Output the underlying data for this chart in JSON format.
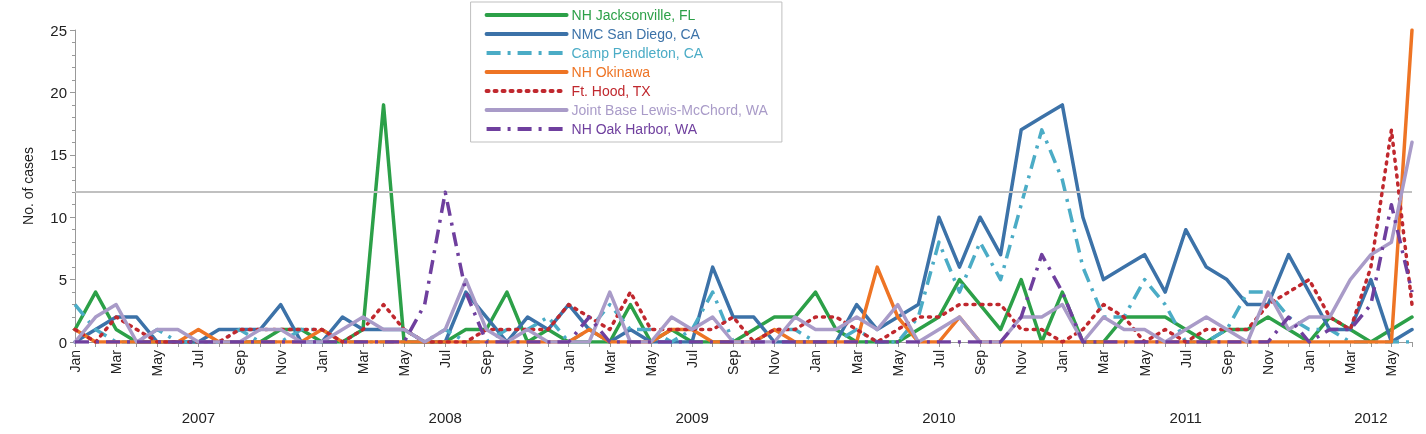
{
  "chart_data": {
    "type": "line",
    "ylabel": "No. of cases",
    "categories": [
      "Jan",
      null,
      "Mar",
      null,
      "May",
      null,
      "Jul",
      null,
      "Sep",
      null,
      "Nov",
      null,
      "Jan",
      null,
      "Mar",
      null,
      "May",
      null,
      "Jul",
      null,
      "Sep",
      null,
      "Nov",
      null,
      "Jan",
      null,
      "Mar",
      null,
      "May",
      null,
      "Jul",
      null,
      "Sep",
      null,
      "Nov",
      null,
      "Jan",
      null,
      "Mar",
      null,
      "May",
      null,
      "Jul",
      null,
      "Sep",
      null,
      "Nov",
      null,
      "Jan",
      null,
      "Mar",
      null,
      "May",
      null,
      "Jul",
      null,
      "Sep",
      null,
      "Nov",
      null,
      "Jan",
      null,
      "Mar",
      null,
      "May",
      null
    ],
    "annotations": [
      "2007",
      "2008",
      "2009",
      "2010",
      "2011",
      "2012"
    ],
    "ylim": [
      0,
      25
    ],
    "yticks": [
      0,
      5,
      10,
      15,
      20,
      25
    ],
    "grid": false,
    "legend": "top",
    "marker": "none",
    "ref_lines": [
      {
        "axis": "y",
        "value": 12,
        "color": "#c0c0c0"
      }
    ],
    "series": [
      {
        "name": "NH Jacksonville, FL",
        "color": "#2ca048",
        "line_style": "solid",
        "values": [
          1,
          4,
          1,
          0,
          0,
          0,
          0,
          0,
          0,
          0,
          1,
          1,
          0,
          0,
          1,
          19,
          0,
          0,
          0,
          1,
          1,
          4,
          0,
          1,
          0,
          0,
          0,
          3,
          0,
          1,
          0,
          0,
          0,
          1,
          2,
          2,
          4,
          1,
          0,
          0,
          0,
          1,
          2,
          5,
          3,
          1,
          5,
          0,
          4,
          0,
          0,
          2,
          2,
          2,
          1,
          0,
          1,
          1,
          2,
          1,
          0,
          2,
          1,
          0,
          1,
          2
        ]
      },
      {
        "name": "NMC San Diego, CA",
        "color": "#3c72a8",
        "line_style": "solid",
        "values": [
          0,
          1,
          2,
          2,
          0,
          0,
          0,
          1,
          1,
          1,
          3,
          0,
          0,
          2,
          1,
          1,
          1,
          0,
          0,
          4,
          2,
          0,
          2,
          1,
          3,
          1,
          0,
          1,
          0,
          0,
          0,
          6,
          2,
          2,
          0,
          0,
          0,
          0,
          3,
          1,
          2,
          3,
          10,
          6,
          10,
          7,
          17,
          18,
          19,
          10,
          5,
          6,
          7,
          4,
          9,
          6,
          5,
          3,
          3,
          7,
          4,
          1,
          1,
          5,
          0,
          1
        ]
      },
      {
        "name": "Camp Pendleton, CA",
        "color": "#4bacc6",
        "line_style": "dashed",
        "values": [
          3,
          1,
          0,
          0,
          1,
          0,
          0,
          0,
          1,
          0,
          0,
          1,
          1,
          0,
          0,
          0,
          0,
          0,
          1,
          0,
          0,
          1,
          1,
          2,
          0,
          1,
          3,
          1,
          1,
          0,
          1,
          4,
          0,
          0,
          1,
          1,
          0,
          0,
          1,
          0,
          0,
          2,
          8,
          4,
          8,
          5,
          11,
          17,
          13,
          6,
          2,
          2,
          5,
          3,
          0,
          0,
          1,
          4,
          4,
          2,
          1,
          1,
          0,
          0,
          0,
          0
        ]
      },
      {
        "name": "NH Okinawa",
        "color": "#ee7424",
        "line_style": "solid",
        "values": [
          1,
          0,
          0,
          0,
          0,
          0,
          1,
          0,
          0,
          0,
          0,
          0,
          1,
          0,
          0,
          0,
          0,
          0,
          0,
          0,
          0,
          0,
          0,
          0,
          0,
          1,
          0,
          0,
          0,
          1,
          1,
          0,
          0,
          0,
          1,
          0,
          0,
          0,
          0,
          6,
          2,
          0,
          0,
          2,
          0,
          0,
          0,
          0,
          0,
          0,
          0,
          0,
          0,
          0,
          0,
          0,
          0,
          0,
          0,
          0,
          0,
          0,
          0,
          0,
          0,
          25
        ]
      },
      {
        "name": "Ft. Hood, TX",
        "color": "#c0282e",
        "line_style": "dotted",
        "values": [
          1,
          0,
          2,
          1,
          0,
          0,
          0,
          0,
          1,
          1,
          1,
          1,
          1,
          0,
          1,
          3,
          1,
          0,
          0,
          0,
          1,
          1,
          1,
          1,
          3,
          2,
          1,
          4,
          1,
          1,
          1,
          1,
          2,
          0,
          1,
          1,
          2,
          2,
          1,
          0,
          1,
          2,
          2,
          3,
          3,
          3,
          1,
          1,
          0,
          1,
          3,
          2,
          0,
          1,
          0,
          1,
          1,
          1,
          3,
          4,
          5,
          2,
          1,
          6,
          17,
          3
        ]
      },
      {
        "name": "Joint Base Lewis-McChord, WA",
        "color": "#a99bc8",
        "line_style": "solid",
        "values": [
          0,
          2,
          3,
          0,
          1,
          1,
          0,
          0,
          0,
          1,
          1,
          0,
          0,
          1,
          2,
          1,
          1,
          0,
          1,
          5,
          1,
          0,
          1,
          0,
          0,
          0,
          4,
          0,
          0,
          2,
          1,
          2,
          0,
          0,
          0,
          2,
          1,
          1,
          2,
          1,
          3,
          0,
          1,
          2,
          0,
          0,
          2,
          2,
          3,
          0,
          2,
          1,
          1,
          0,
          1,
          2,
          1,
          0,
          4,
          1,
          2,
          2,
          5,
          7,
          8,
          16
        ]
      },
      {
        "name": "NH Oak Harbor, WA",
        "color": "#6f3f9e",
        "line_style": "dashed",
        "values": [
          0,
          0,
          0,
          0,
          0,
          0,
          0,
          0,
          0,
          0,
          0,
          0,
          0,
          0,
          0,
          0,
          0,
          3,
          12,
          4,
          0,
          0,
          0,
          0,
          0,
          2,
          0,
          0,
          0,
          0,
          0,
          0,
          0,
          0,
          0,
          0,
          0,
          0,
          0,
          0,
          0,
          0,
          0,
          0,
          0,
          0,
          2,
          7,
          4,
          0,
          0,
          0,
          0,
          0,
          0,
          0,
          0,
          0,
          0,
          2,
          0,
          1,
          1,
          3,
          11,
          4
        ]
      }
    ]
  }
}
